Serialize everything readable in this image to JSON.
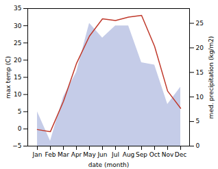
{
  "chart_data": {
    "type": "line",
    "categories": [
      "Jan",
      "Feb",
      "Mar",
      "Apr",
      "May",
      "Jun",
      "Jul",
      "Aug",
      "Sep",
      "Oct",
      "Nov",
      "Dec"
    ],
    "xlabel": "date (month)",
    "ylabel": "max temp (C)",
    "y2label": "med. precipitation (kg/m2)",
    "series": [
      {
        "name": "med. precipitation (kg/m2)",
        "type": "area",
        "axis": "y2",
        "color": "#c5cce8",
        "values": [
          7.0,
          1.0,
          10.0,
          15.0,
          25.0,
          22.0,
          24.5,
          24.5,
          17.0,
          16.5,
          8.5,
          12.0
        ]
      },
      {
        "name": "max temp (C)",
        "type": "line",
        "color": "#c0392b",
        "values": [
          -0.2,
          -0.8,
          8.0,
          19.0,
          27.0,
          32.0,
          31.5,
          32.5,
          33.0,
          24.0,
          11.0,
          6.0
        ]
      }
    ],
    "ylim": [
      -5,
      35
    ],
    "yticks": [
      -5,
      0,
      5,
      10,
      15,
      20,
      25,
      30,
      35
    ],
    "y2lim": [
      0,
      28
    ],
    "y2ticks": [
      0,
      5,
      10,
      15,
      20,
      25
    ],
    "grid": false
  }
}
